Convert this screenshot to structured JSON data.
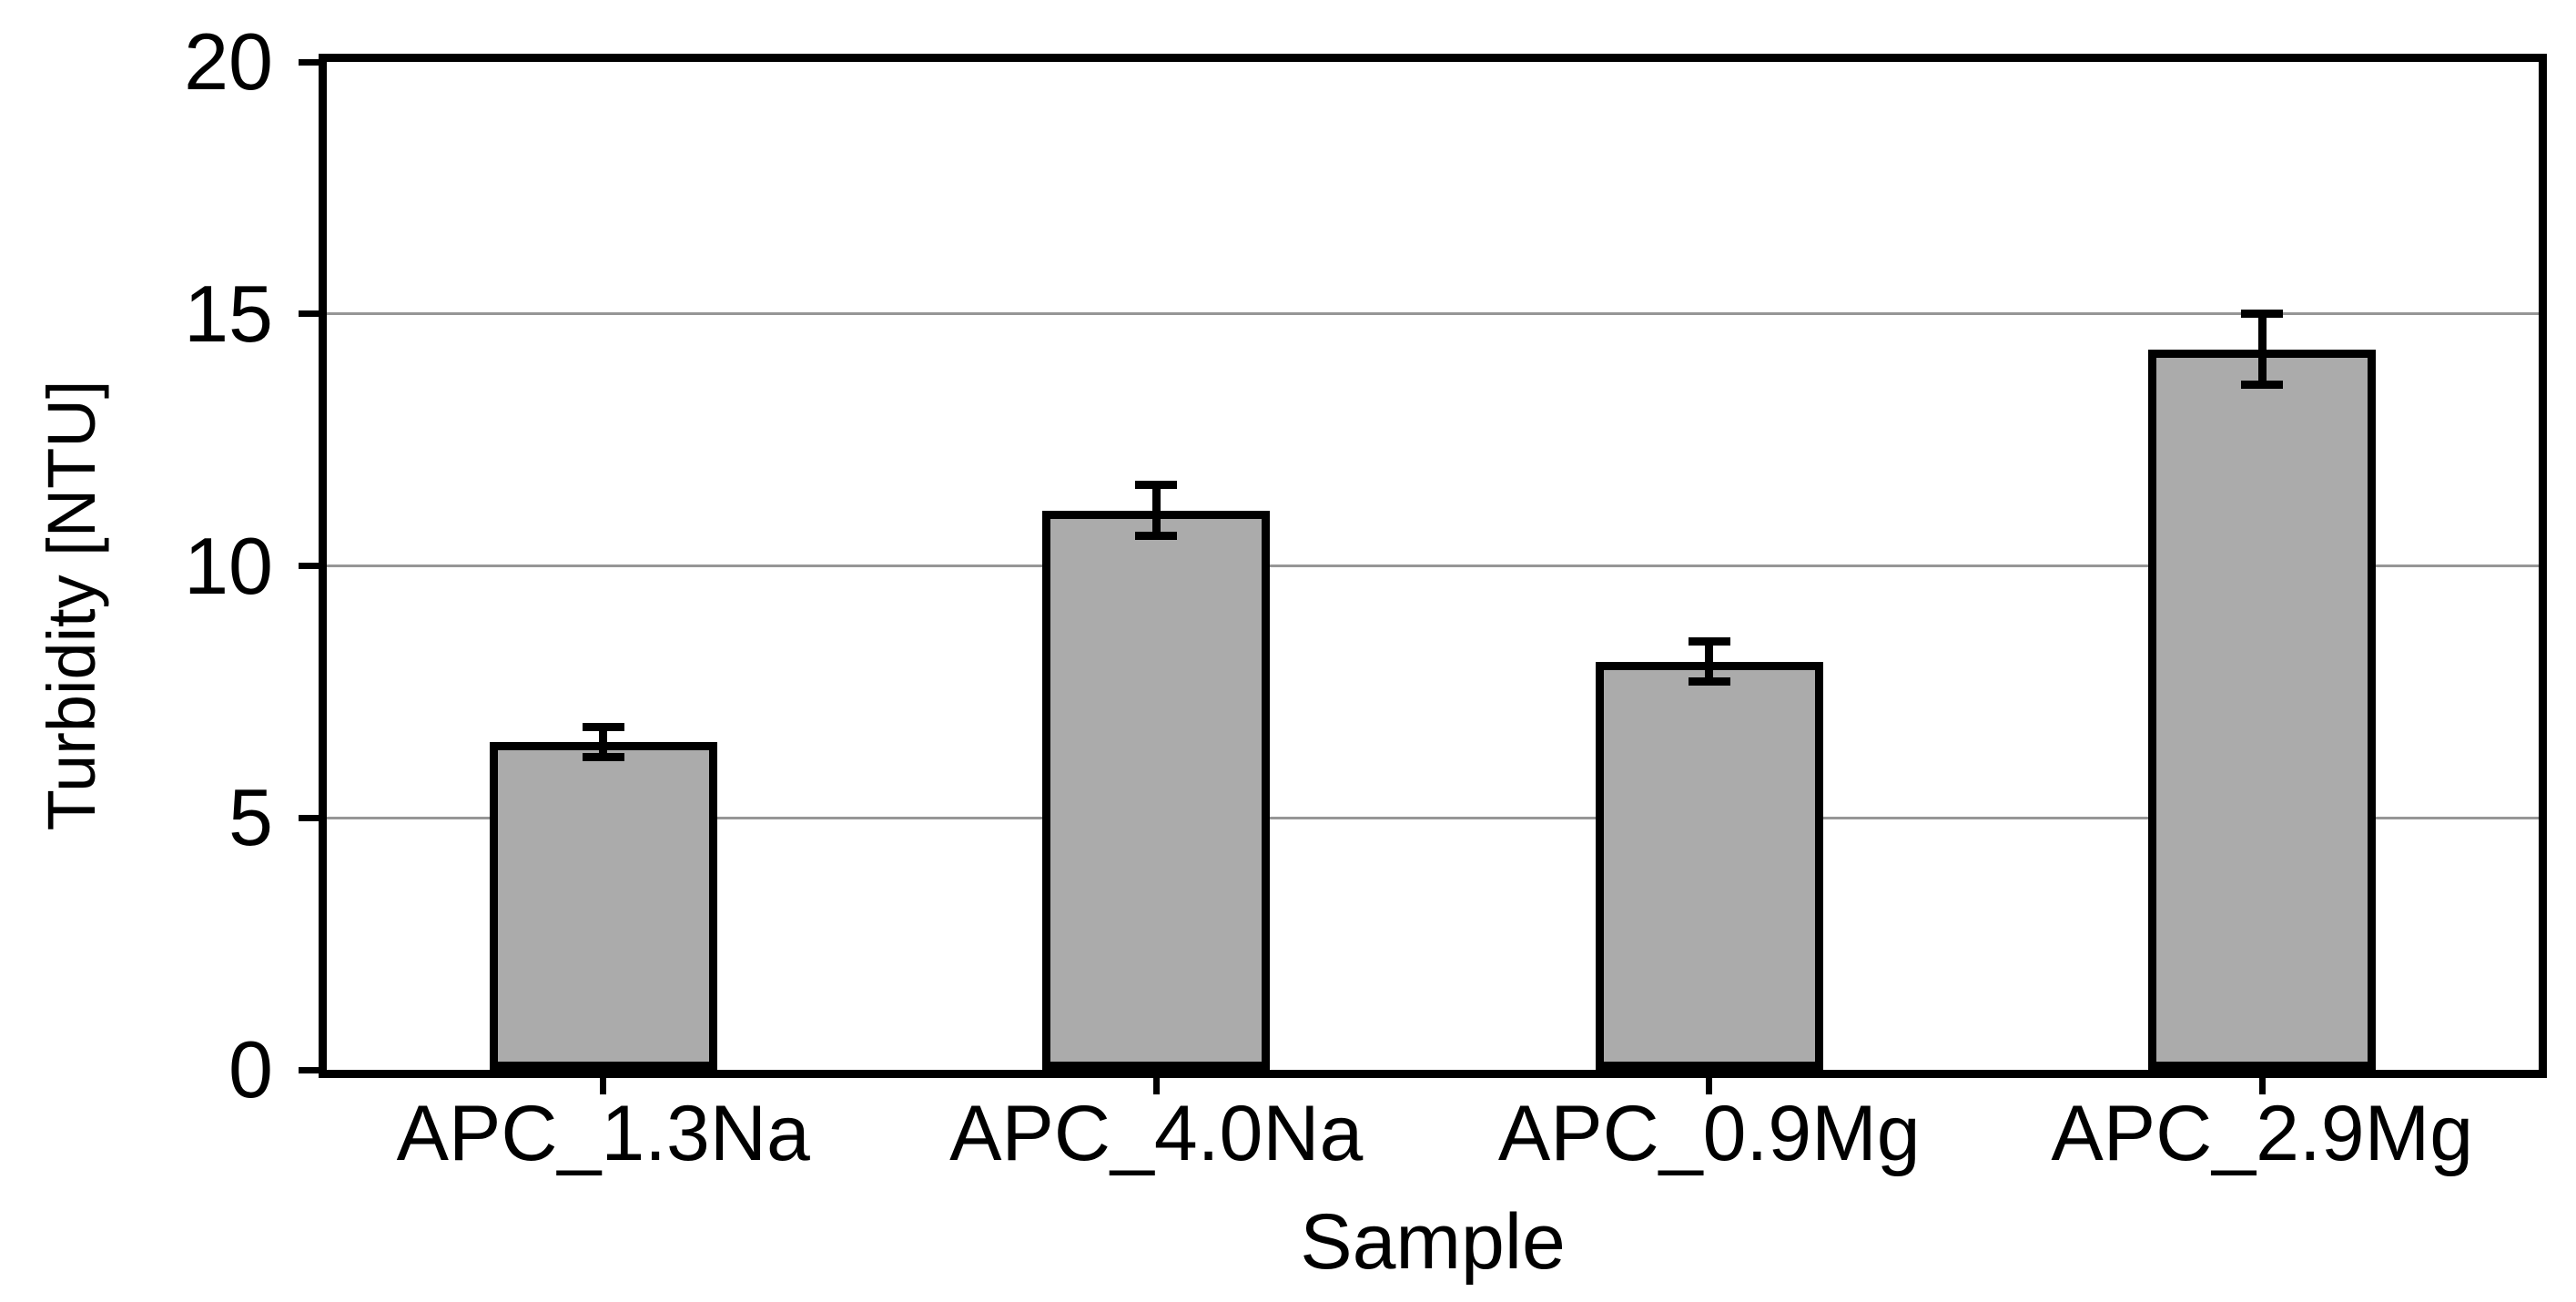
{
  "chart_data": {
    "type": "bar",
    "title": "",
    "xlabel": "Sample",
    "ylabel": "Turbidity [NTU]",
    "categories": [
      "APC_1.3Na",
      "APC_4.0Na",
      "APC_0.9Mg",
      "APC_2.9Mg"
    ],
    "values": [
      6.5,
      11.1,
      8.1,
      14.3
    ],
    "errors": [
      0.3,
      0.5,
      0.4,
      0.7
    ],
    "ylim": [
      0,
      20
    ],
    "yticks": [
      0,
      5,
      10,
      15,
      20
    ],
    "grid": true,
    "legend": "none",
    "colors": {
      "bar_fill": "#ABABAB",
      "bar_border": "#000000",
      "gridline": "#969696",
      "axis": "#000000",
      "text": "#000000",
      "background": "#FFFFFF"
    }
  }
}
